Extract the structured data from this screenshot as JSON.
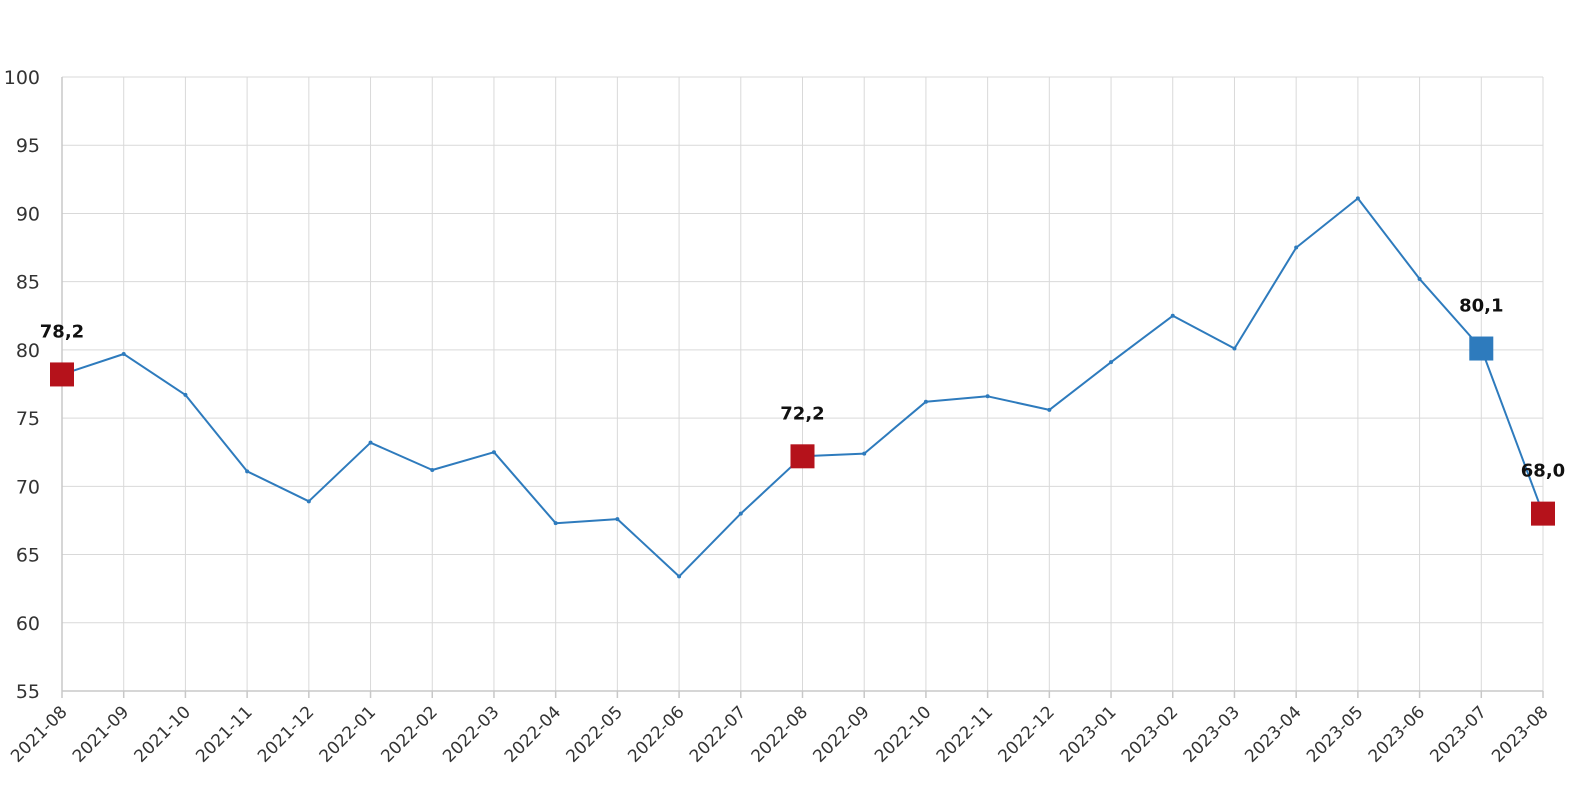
{
  "chart_data": {
    "type": "line",
    "title": "",
    "xlabel": "",
    "ylabel": "",
    "ylim": [
      55,
      100
    ],
    "yticks": [
      55,
      60,
      65,
      70,
      75,
      80,
      85,
      90,
      95,
      100
    ],
    "grid": true,
    "legend": "none",
    "categories": [
      "2021-08",
      "2021-09",
      "2021-10",
      "2021-11",
      "2021-12",
      "2022-01",
      "2022-02",
      "2022-03",
      "2022-04",
      "2022-05",
      "2022-06",
      "2022-07",
      "2022-08",
      "2022-09",
      "2022-10",
      "2022-11",
      "2022-12",
      "2023-01",
      "2023-02",
      "2023-03",
      "2023-04",
      "2023-05",
      "2023-06",
      "2023-07",
      "2023-08"
    ],
    "series": [
      {
        "color": "#2e7bbd",
        "values": [
          78.2,
          79.7,
          76.7,
          71.1,
          68.9,
          73.2,
          71.2,
          72.5,
          67.3,
          67.6,
          63.4,
          68.0,
          72.2,
          72.4,
          76.2,
          76.6,
          75.6,
          79.1,
          82.5,
          80.1,
          87.5,
          91.1,
          85.2,
          80.1,
          68.0
        ]
      }
    ],
    "highlights": [
      {
        "index": 0,
        "label": "78,2",
        "color": "#b5121b"
      },
      {
        "index": 12,
        "label": "72,2",
        "color": "#b5121b"
      },
      {
        "index": 23,
        "label": "80,1",
        "color": "#2e7bbd"
      },
      {
        "index": 24,
        "label": "68,0",
        "color": "#b5121b"
      }
    ]
  }
}
